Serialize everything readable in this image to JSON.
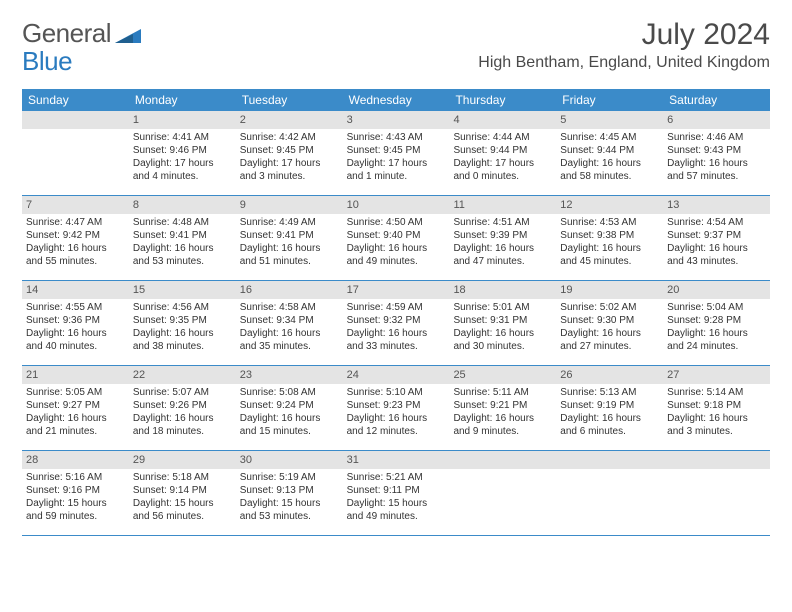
{
  "brand": {
    "part1": "General",
    "part2": "Blue"
  },
  "title": "July 2024",
  "location": "High Bentham, England, United Kingdom",
  "colors": {
    "header_bg": "#3b8bc9",
    "daynum_bg": "#e4e4e4",
    "rule": "#3b8bc9",
    "text": "#333333",
    "brand_gray": "#555555",
    "brand_blue": "#2a7bbf"
  },
  "weekdays": [
    "Sunday",
    "Monday",
    "Tuesday",
    "Wednesday",
    "Thursday",
    "Friday",
    "Saturday"
  ],
  "weeks": [
    [
      null,
      {
        "n": "1",
        "sr": "Sunrise: 4:41 AM",
        "ss": "Sunset: 9:46 PM",
        "d1": "Daylight: 17 hours",
        "d2": "and 4 minutes."
      },
      {
        "n": "2",
        "sr": "Sunrise: 4:42 AM",
        "ss": "Sunset: 9:45 PM",
        "d1": "Daylight: 17 hours",
        "d2": "and 3 minutes."
      },
      {
        "n": "3",
        "sr": "Sunrise: 4:43 AM",
        "ss": "Sunset: 9:45 PM",
        "d1": "Daylight: 17 hours",
        "d2": "and 1 minute."
      },
      {
        "n": "4",
        "sr": "Sunrise: 4:44 AM",
        "ss": "Sunset: 9:44 PM",
        "d1": "Daylight: 17 hours",
        "d2": "and 0 minutes."
      },
      {
        "n": "5",
        "sr": "Sunrise: 4:45 AM",
        "ss": "Sunset: 9:44 PM",
        "d1": "Daylight: 16 hours",
        "d2": "and 58 minutes."
      },
      {
        "n": "6",
        "sr": "Sunrise: 4:46 AM",
        "ss": "Sunset: 9:43 PM",
        "d1": "Daylight: 16 hours",
        "d2": "and 57 minutes."
      }
    ],
    [
      {
        "n": "7",
        "sr": "Sunrise: 4:47 AM",
        "ss": "Sunset: 9:42 PM",
        "d1": "Daylight: 16 hours",
        "d2": "and 55 minutes."
      },
      {
        "n": "8",
        "sr": "Sunrise: 4:48 AM",
        "ss": "Sunset: 9:41 PM",
        "d1": "Daylight: 16 hours",
        "d2": "and 53 minutes."
      },
      {
        "n": "9",
        "sr": "Sunrise: 4:49 AM",
        "ss": "Sunset: 9:41 PM",
        "d1": "Daylight: 16 hours",
        "d2": "and 51 minutes."
      },
      {
        "n": "10",
        "sr": "Sunrise: 4:50 AM",
        "ss": "Sunset: 9:40 PM",
        "d1": "Daylight: 16 hours",
        "d2": "and 49 minutes."
      },
      {
        "n": "11",
        "sr": "Sunrise: 4:51 AM",
        "ss": "Sunset: 9:39 PM",
        "d1": "Daylight: 16 hours",
        "d2": "and 47 minutes."
      },
      {
        "n": "12",
        "sr": "Sunrise: 4:53 AM",
        "ss": "Sunset: 9:38 PM",
        "d1": "Daylight: 16 hours",
        "d2": "and 45 minutes."
      },
      {
        "n": "13",
        "sr": "Sunrise: 4:54 AM",
        "ss": "Sunset: 9:37 PM",
        "d1": "Daylight: 16 hours",
        "d2": "and 43 minutes."
      }
    ],
    [
      {
        "n": "14",
        "sr": "Sunrise: 4:55 AM",
        "ss": "Sunset: 9:36 PM",
        "d1": "Daylight: 16 hours",
        "d2": "and 40 minutes."
      },
      {
        "n": "15",
        "sr": "Sunrise: 4:56 AM",
        "ss": "Sunset: 9:35 PM",
        "d1": "Daylight: 16 hours",
        "d2": "and 38 minutes."
      },
      {
        "n": "16",
        "sr": "Sunrise: 4:58 AM",
        "ss": "Sunset: 9:34 PM",
        "d1": "Daylight: 16 hours",
        "d2": "and 35 minutes."
      },
      {
        "n": "17",
        "sr": "Sunrise: 4:59 AM",
        "ss": "Sunset: 9:32 PM",
        "d1": "Daylight: 16 hours",
        "d2": "and 33 minutes."
      },
      {
        "n": "18",
        "sr": "Sunrise: 5:01 AM",
        "ss": "Sunset: 9:31 PM",
        "d1": "Daylight: 16 hours",
        "d2": "and 30 minutes."
      },
      {
        "n": "19",
        "sr": "Sunrise: 5:02 AM",
        "ss": "Sunset: 9:30 PM",
        "d1": "Daylight: 16 hours",
        "d2": "and 27 minutes."
      },
      {
        "n": "20",
        "sr": "Sunrise: 5:04 AM",
        "ss": "Sunset: 9:28 PM",
        "d1": "Daylight: 16 hours",
        "d2": "and 24 minutes."
      }
    ],
    [
      {
        "n": "21",
        "sr": "Sunrise: 5:05 AM",
        "ss": "Sunset: 9:27 PM",
        "d1": "Daylight: 16 hours",
        "d2": "and 21 minutes."
      },
      {
        "n": "22",
        "sr": "Sunrise: 5:07 AM",
        "ss": "Sunset: 9:26 PM",
        "d1": "Daylight: 16 hours",
        "d2": "and 18 minutes."
      },
      {
        "n": "23",
        "sr": "Sunrise: 5:08 AM",
        "ss": "Sunset: 9:24 PM",
        "d1": "Daylight: 16 hours",
        "d2": "and 15 minutes."
      },
      {
        "n": "24",
        "sr": "Sunrise: 5:10 AM",
        "ss": "Sunset: 9:23 PM",
        "d1": "Daylight: 16 hours",
        "d2": "and 12 minutes."
      },
      {
        "n": "25",
        "sr": "Sunrise: 5:11 AM",
        "ss": "Sunset: 9:21 PM",
        "d1": "Daylight: 16 hours",
        "d2": "and 9 minutes."
      },
      {
        "n": "26",
        "sr": "Sunrise: 5:13 AM",
        "ss": "Sunset: 9:19 PM",
        "d1": "Daylight: 16 hours",
        "d2": "and 6 minutes."
      },
      {
        "n": "27",
        "sr": "Sunrise: 5:14 AM",
        "ss": "Sunset: 9:18 PM",
        "d1": "Daylight: 16 hours",
        "d2": "and 3 minutes."
      }
    ],
    [
      {
        "n": "28",
        "sr": "Sunrise: 5:16 AM",
        "ss": "Sunset: 9:16 PM",
        "d1": "Daylight: 15 hours",
        "d2": "and 59 minutes."
      },
      {
        "n": "29",
        "sr": "Sunrise: 5:18 AM",
        "ss": "Sunset: 9:14 PM",
        "d1": "Daylight: 15 hours",
        "d2": "and 56 minutes."
      },
      {
        "n": "30",
        "sr": "Sunrise: 5:19 AM",
        "ss": "Sunset: 9:13 PM",
        "d1": "Daylight: 15 hours",
        "d2": "and 53 minutes."
      },
      {
        "n": "31",
        "sr": "Sunrise: 5:21 AM",
        "ss": "Sunset: 9:11 PM",
        "d1": "Daylight: 15 hours",
        "d2": "and 49 minutes."
      },
      null,
      null,
      null
    ]
  ]
}
